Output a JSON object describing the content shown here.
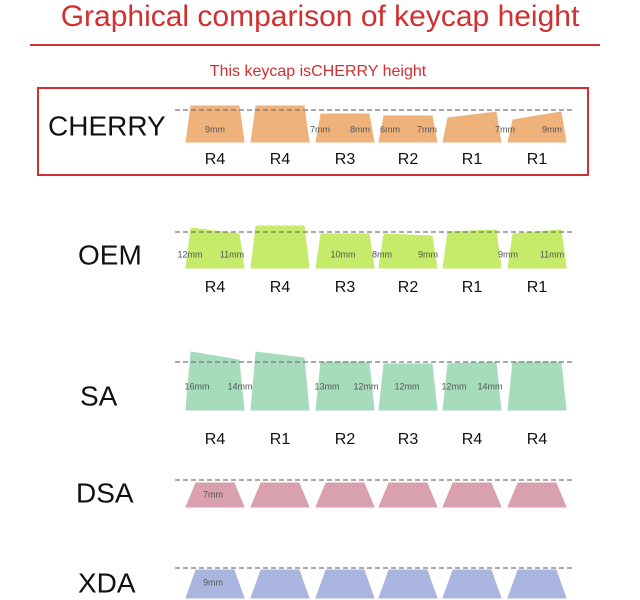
{
  "title": "Graphical comparison of keycap height",
  "subtitle": "This keycap isCHERRY height",
  "profiles": [
    {
      "name": "CHERRY",
      "color": "#eeb27a",
      "rows": [
        "R4",
        "R4",
        "R3",
        "R2",
        "R1",
        "R1"
      ],
      "measures": [
        "9mm",
        "7mm",
        "8mm",
        "6mm",
        "7mm",
        "7mm",
        "9mm"
      ]
    },
    {
      "name": "OEM",
      "color": "#c6ea6a",
      "rows": [
        "R4",
        "R4",
        "R3",
        "R2",
        "R1",
        "R1"
      ],
      "measures": [
        "12mm",
        "11mm",
        "10mm",
        "8mm",
        "9mm",
        "9mm",
        "11mm"
      ]
    },
    {
      "name": "SA",
      "color": "#a6dcbc",
      "rows": [
        "R4",
        "R1",
        "R2",
        "R3",
        "R4",
        "R4"
      ],
      "measures": [
        "16mm",
        "14mm",
        "13mm",
        "12mm",
        "12mm",
        "12mm",
        "14mm"
      ]
    },
    {
      "name": "DSA",
      "color": "#d9a0ae",
      "rows": [],
      "measures": [
        "7mm"
      ]
    },
    {
      "name": "XDA",
      "color": "#abb6e0",
      "rows": [],
      "measures": [
        "9mm"
      ]
    }
  ]
}
